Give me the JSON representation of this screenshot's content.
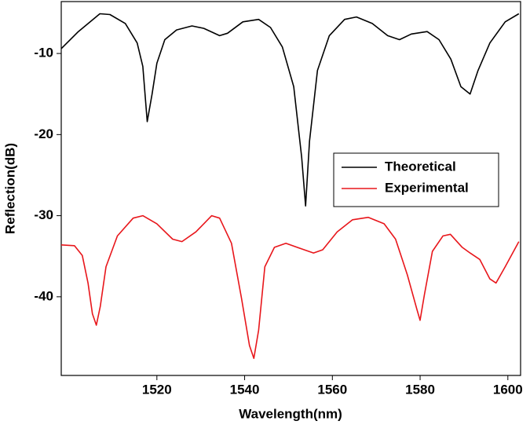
{
  "chart_data": {
    "type": "line",
    "xlabel": "Wavelength(nm)",
    "ylabel": "Reflection(dB)",
    "xlim": [
      1498.2,
      1602.9
    ],
    "ylim": [
      -49.7,
      -3.6
    ],
    "xticks": [
      1520,
      1540,
      1560,
      1580,
      1600
    ],
    "yticks": [
      -40,
      -30,
      -20,
      -10
    ],
    "legend": "center-right",
    "series": [
      {
        "name": "Theoretical",
        "color": "#000000",
        "x": [
          1498.2,
          1502.1,
          1507,
          1509.3,
          1512.8,
          1515.5,
          1516.8,
          1517.8,
          1518.9,
          1520,
          1521.8,
          1524.5,
          1528,
          1530.7,
          1534.3,
          1536.1,
          1539.6,
          1543.2,
          1545.9,
          1548.6,
          1551.2,
          1553,
          1553.9,
          1554.8,
          1556.6,
          1559.3,
          1562.8,
          1565.5,
          1569.1,
          1572.6,
          1575.3,
          1578,
          1581.6,
          1584.3,
          1587,
          1589.3,
          1591.4,
          1593.2,
          1595.9,
          1599.4,
          1602.5
        ],
        "values": [
          -9.4,
          -7.3,
          -5.1,
          -5.2,
          -6.3,
          -8.7,
          -11.6,
          -18.4,
          -15,
          -11.2,
          -8.3,
          -7.1,
          -6.6,
          -6.9,
          -7.8,
          -7.5,
          -6.1,
          -5.8,
          -6.8,
          -9.2,
          -14.1,
          -22.8,
          -28.8,
          -20.8,
          -12.1,
          -7.8,
          -5.8,
          -5.5,
          -6.3,
          -7.8,
          -8.3,
          -7.6,
          -7.3,
          -8.3,
          -10.7,
          -14.1,
          -15,
          -12.1,
          -8.7,
          -6.1,
          -5.1
        ]
      },
      {
        "name": "Experimental",
        "color": "#e8161b",
        "x": [
          1498.2,
          1501.2,
          1503,
          1504.3,
          1505.3,
          1506.2,
          1507.1,
          1508.4,
          1511,
          1514.6,
          1516.8,
          1520,
          1523.6,
          1525.7,
          1528.9,
          1532.5,
          1534.3,
          1537,
          1539.3,
          1541.1,
          1542.1,
          1543.2,
          1544.6,
          1546.8,
          1549.4,
          1553,
          1555.7,
          1557.8,
          1561.1,
          1564.6,
          1568.2,
          1571.8,
          1574.4,
          1577.1,
          1579.3,
          1580,
          1581,
          1582.8,
          1585.2,
          1586.9,
          1589.6,
          1591.4,
          1593.6,
          1595.9,
          1597.3,
          1599.4,
          1602.5
        ],
        "values": [
          -33.6,
          -33.7,
          -34.9,
          -38.3,
          -42.1,
          -43.5,
          -41.2,
          -36.3,
          -32.5,
          -30.3,
          -30,
          -31,
          -32.9,
          -33.2,
          -32,
          -30,
          -30.3,
          -33.4,
          -40.2,
          -46,
          -47.6,
          -44.1,
          -36.3,
          -33.9,
          -33.4,
          -34.1,
          -34.6,
          -34.2,
          -32,
          -30.5,
          -30.2,
          -31,
          -32.9,
          -37.3,
          -41.6,
          -42.9,
          -39.7,
          -34.4,
          -32.5,
          -32.3,
          -33.9,
          -34.6,
          -35.4,
          -37.8,
          -38.3,
          -36.3,
          -33.2
        ]
      }
    ]
  }
}
